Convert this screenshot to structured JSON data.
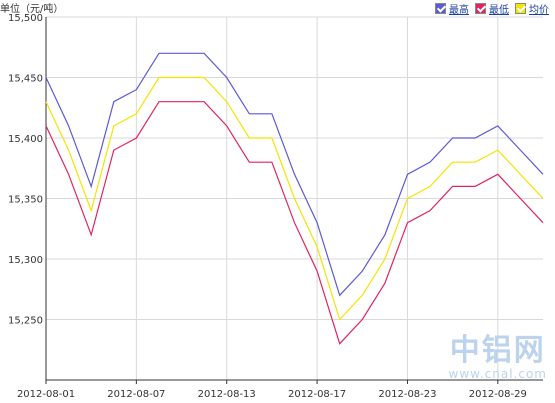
{
  "unit_label": "单位（元/吨）",
  "legend": [
    {
      "label": "最高",
      "color": "#5b5bd6"
    },
    {
      "label": "最低",
      "color": "#e0245e"
    },
    {
      "label": "均价",
      "color": "#f5e400"
    }
  ],
  "watermark": {
    "text": "中铝网",
    "url": "www.cnal.com"
  },
  "chart_data": {
    "type": "line",
    "title": "",
    "xlabel": "",
    "ylabel": "单位（元/吨）",
    "ylim": [
      15200,
      15500
    ],
    "yticks": [
      15250,
      15300,
      15350,
      15400,
      15450,
      15500
    ],
    "ytick_labels": [
      "15,250",
      "15,300",
      "15,350",
      "15,400",
      "15,450",
      "15,500"
    ],
    "x": [
      "2012-08-01",
      "2012-08-02",
      "2012-08-03",
      "2012-08-06",
      "2012-08-07",
      "2012-08-08",
      "2012-08-09",
      "2012-08-10",
      "2012-08-13",
      "2012-08-14",
      "2012-08-15",
      "2012-08-16",
      "2012-08-17",
      "2012-08-20",
      "2012-08-21",
      "2012-08-22",
      "2012-08-23",
      "2012-08-24",
      "2012-08-27",
      "2012-08-28",
      "2012-08-29",
      "2012-08-30",
      "2012-08-31"
    ],
    "xtick_labels": [
      "2012-08-01",
      "2012-08-07",
      "2012-08-13",
      "2012-08-17",
      "2012-08-23",
      "2012-08-29"
    ],
    "grid": true,
    "legend_position": "top-right",
    "series": [
      {
        "name": "最高",
        "color": "#5b5bd6",
        "values": [
          15450,
          15410,
          15360,
          15430,
          15440,
          15470,
          15470,
          15470,
          15450,
          15420,
          15420,
          15370,
          15330,
          15270,
          15290,
          15320,
          15370,
          15380,
          15400,
          15400,
          15410,
          15390,
          15370
        ]
      },
      {
        "name": "最低",
        "color": "#e0245e",
        "values": [
          15410,
          15370,
          15320,
          15390,
          15400,
          15430,
          15430,
          15430,
          15410,
          15380,
          15380,
          15330,
          15290,
          15230,
          15250,
          15280,
          15330,
          15340,
          15360,
          15360,
          15370,
          15350,
          15330
        ]
      },
      {
        "name": "均价",
        "color": "#f5e400",
        "values": [
          15430,
          15390,
          15340,
          15410,
          15420,
          15450,
          15450,
          15450,
          15430,
          15400,
          15400,
          15350,
          15310,
          15250,
          15270,
          15300,
          15350,
          15360,
          15380,
          15380,
          15390,
          15370,
          15350
        ]
      }
    ]
  }
}
